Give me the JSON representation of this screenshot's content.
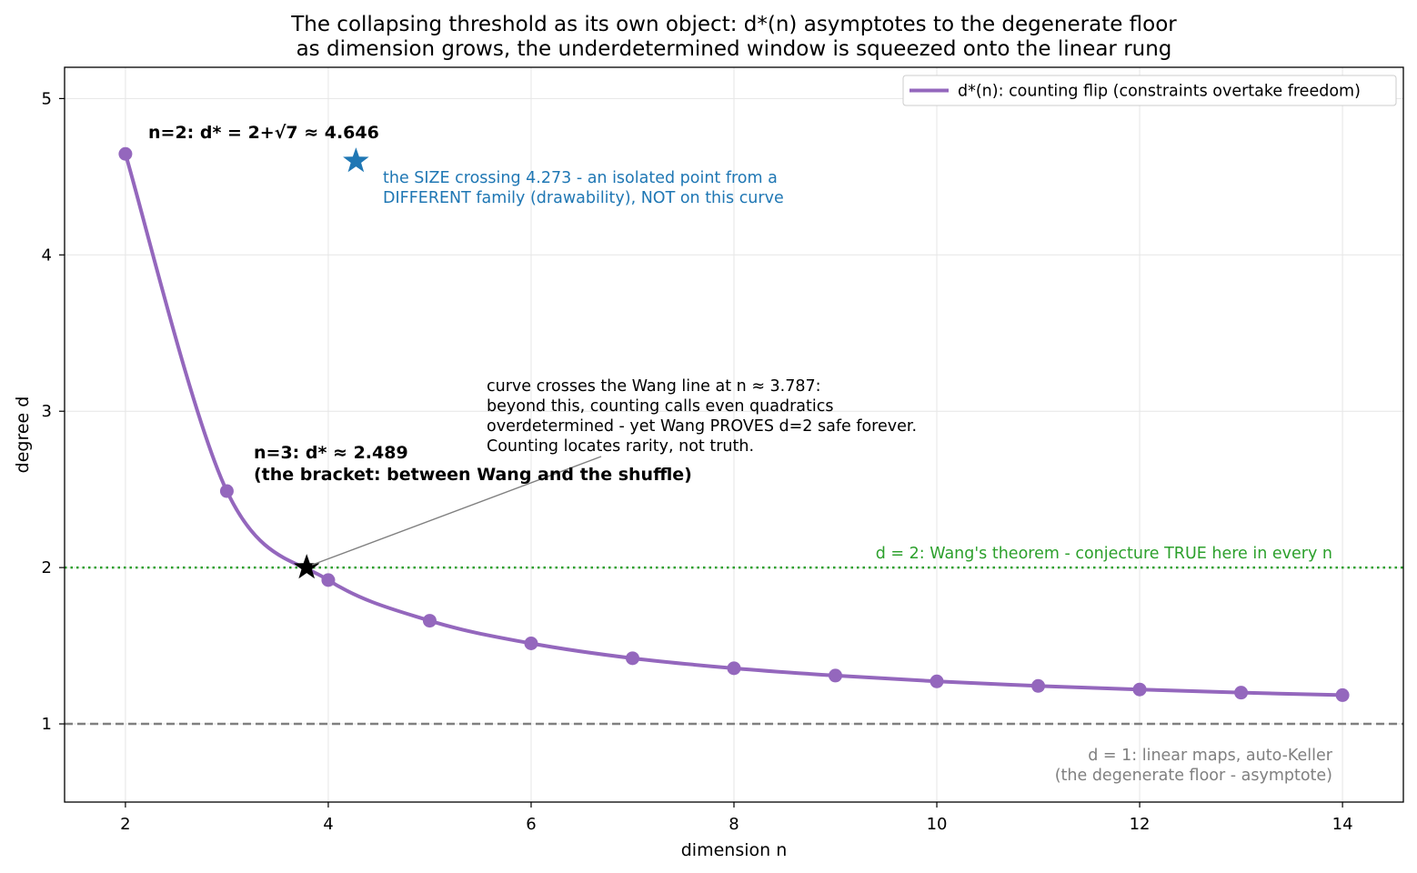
{
  "chart_data": {
    "type": "line",
    "title": [
      "The collapsing threshold as its own object: d*(n) asymptotes to the degenerate floor",
      "as dimension grows, the underdetermined window is squeezed onto the linear rung"
    ],
    "xlabel": "dimension n",
    "ylabel": "degree d",
    "xlim": [
      1.4,
      14.6
    ],
    "ylim": [
      0.5,
      5.2
    ],
    "xticks": [
      2,
      4,
      6,
      8,
      10,
      12,
      14
    ],
    "yticks": [
      1,
      2,
      3,
      4,
      5
    ],
    "grid": true,
    "legend_position": "top-right",
    "series": [
      {
        "name": "d*(n): counting flip (constraints overtake freedom)",
        "color": "#9467bd",
        "x": [
          2,
          3,
          4,
          5,
          6,
          7,
          8,
          9,
          10,
          11,
          12,
          13,
          14
        ],
        "values": [
          4.646,
          2.489,
          1.92,
          1.66,
          1.515,
          1.42,
          1.356,
          1.309,
          1.272,
          1.243,
          1.22,
          1.2,
          1.184
        ]
      }
    ],
    "reference_lines": [
      {
        "y": 2,
        "style": "dotted",
        "color": "#2ca02c",
        "label": "d = 2: Wang's theorem - conjecture TRUE here in every n"
      },
      {
        "y": 1,
        "style": "dashed",
        "color": "#808080",
        "label": [
          "d = 1: linear maps, auto-Keller",
          "(the degenerate floor - asymptote)"
        ]
      }
    ],
    "markers": [
      {
        "x": 3.787,
        "y": 2.0,
        "shape": "star",
        "color": "#000000"
      },
      {
        "x": 4.273,
        "y": 4.6,
        "shape": "star",
        "color": "#1f77b4"
      }
    ],
    "annotations": [
      {
        "text": [
          "n=2: d* = 2+√7 ≈ 4.646"
        ],
        "style": "bold"
      },
      {
        "text": [
          "the SIZE crossing 4.273 - an isolated point from a",
          "DIFFERENT family (drawability), NOT on this curve"
        ],
        "style": "blue"
      },
      {
        "text": [
          "curve crosses the Wang line at n ≈ 3.787:",
          "beyond this, counting calls even quadratics",
          "overdetermined - yet Wang PROVES d=2 safe forever.",
          "Counting locates rarity, not truth."
        ],
        "style": "plain"
      },
      {
        "text": [
          "n=3: d* ≈ 2.489",
          "(the bracket: between Wang and the shuffle)"
        ],
        "style": "bold"
      }
    ]
  }
}
